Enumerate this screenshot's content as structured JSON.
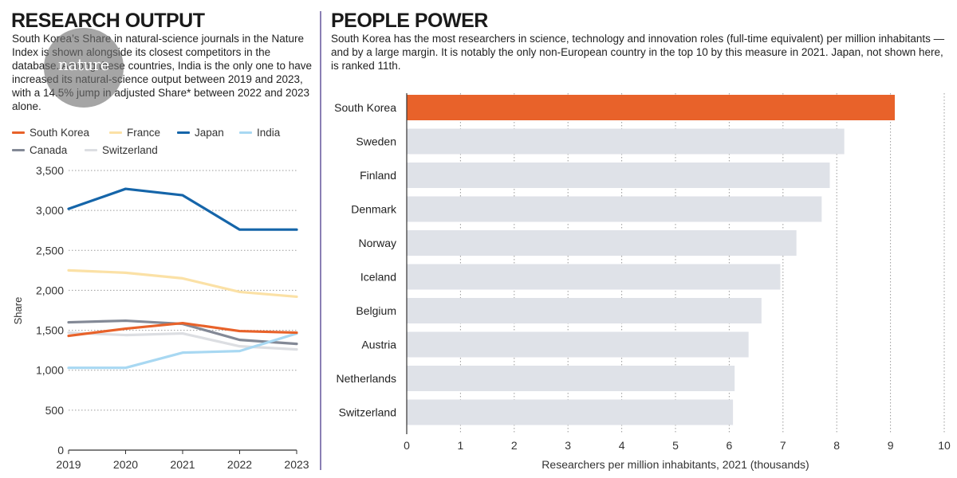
{
  "left": {
    "title": "RESEARCH OUTPUT",
    "description": "South Korea’s Share in natural-science journals in the Nature Index is shown alongside its closest competitors in the database. Among these countries, India is the only one to have increased its natural-science output between 2019 and 2023, with a 14.5% jump in adjusted Share* between 2022 and 2023 alone.",
    "badge": "nature"
  },
  "right": {
    "title": "PEOPLE POWER",
    "description": "South Korea has the most researchers in science, technology and innovation roles (full-time equivalent) per million inhabitants — and by a large margin. It is notably the only non-European country in the top 10 by this measure in 2021. Japan, not shown here, is ranked 11th."
  },
  "chart_data": [
    {
      "type": "line",
      "title": "",
      "ylabel": "Share",
      "xlabel": "",
      "x": [
        "2019",
        "2020",
        "2021",
        "2022",
        "2023"
      ],
      "ylim": [
        0,
        3500
      ],
      "yticks": [
        "0",
        "500",
        "1,000",
        "1,500",
        "2,000",
        "2,500",
        "3,000",
        "3,500"
      ],
      "ytick_values": [
        0,
        500,
        1000,
        1500,
        2000,
        2500,
        3000,
        3500
      ],
      "grid": "horizontal dotted",
      "legend_position": "top",
      "series": [
        {
          "name": "South Korea",
          "color": "#e8622a",
          "values": [
            1430,
            1520,
            1590,
            1490,
            1470
          ]
        },
        {
          "name": "France",
          "color": "#fbe1a6",
          "values": [
            2250,
            2220,
            2150,
            1980,
            1920
          ]
        },
        {
          "name": "Japan",
          "color": "#1565a9",
          "values": [
            3020,
            3270,
            3190,
            2760,
            2760
          ]
        },
        {
          "name": "India",
          "color": "#a8d8f2",
          "values": [
            1030,
            1030,
            1220,
            1240,
            1460
          ]
        },
        {
          "name": "Canada",
          "color": "#838996",
          "values": [
            1600,
            1620,
            1580,
            1380,
            1330
          ]
        },
        {
          "name": "Switzerland",
          "color": "#dcdee2",
          "values": [
            1470,
            1440,
            1460,
            1300,
            1260
          ]
        }
      ]
    },
    {
      "type": "bar",
      "orientation": "horizontal",
      "title": "",
      "xlabel": "Researchers per million inhabitants, 2021 (thousands)",
      "ylabel": "",
      "xlim": [
        0,
        10
      ],
      "xticks": [
        "0",
        "1",
        "2",
        "3",
        "4",
        "5",
        "6",
        "7",
        "8",
        "9",
        "10"
      ],
      "grid": "vertical dotted",
      "highlight_color": "#e8622a",
      "default_color": "#dfe2e8",
      "categories": [
        "South Korea",
        "Sweden",
        "Finland",
        "Denmark",
        "Norway",
        "Iceland",
        "Belgium",
        "Austria",
        "Netherlands",
        "Switzerland"
      ],
      "values": [
        9.08,
        8.14,
        7.87,
        7.72,
        7.25,
        6.95,
        6.6,
        6.36,
        6.1,
        6.07
      ],
      "highlight": [
        true,
        false,
        false,
        false,
        false,
        false,
        false,
        false,
        false,
        false
      ]
    }
  ]
}
